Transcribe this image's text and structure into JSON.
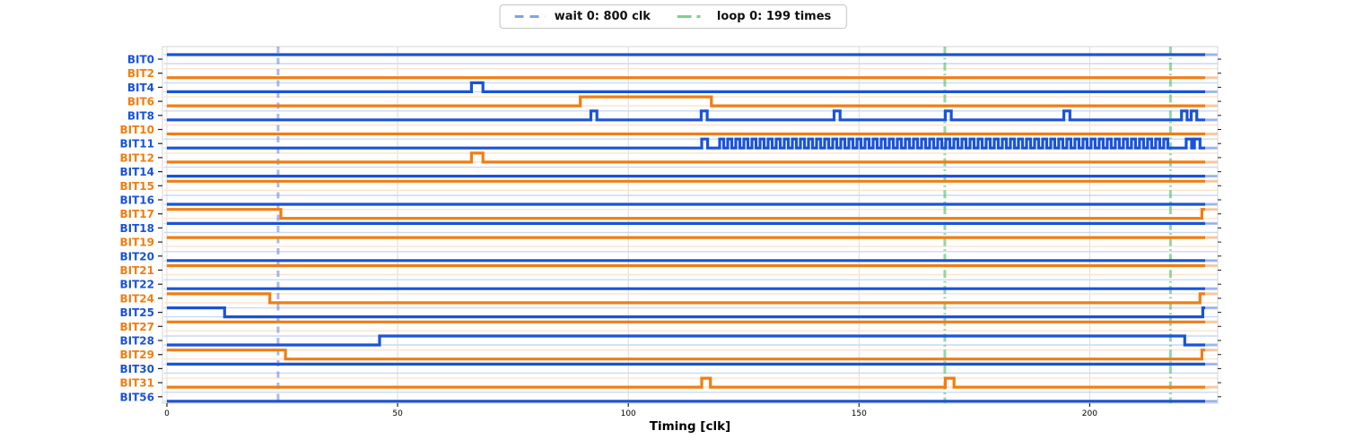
{
  "legend": {
    "wait": {
      "label": "wait 0: 800 clk",
      "color": "#83a1ea",
      "style": "dashed"
    },
    "loop": {
      "label": "loop 0: 199 times",
      "color": "#7fcf90",
      "style": "dashdot"
    }
  },
  "chart_data": {
    "type": "digital-timing",
    "xlabel": "Timing [clk]",
    "x_ticks": [
      0,
      50,
      100,
      150,
      200
    ],
    "xlim": [
      -1,
      227.8
    ],
    "t_end": 225,
    "grid": true,
    "legend_position": "top-center",
    "colors": {
      "blue": "#1a53d6",
      "orange": "#f07e12",
      "blue_faint": "#ccd9f4",
      "orange_faint": "#fbe4cd",
      "wait_line": "rgba(96,128,222,0.55)",
      "loop_line": "rgba(80,190,110,0.62)",
      "gridline": "#dcdcdc",
      "spine": "#d4d4d4",
      "tick": "#222222"
    },
    "events": [
      {
        "name": "wait 0",
        "label": "wait 0: 800 clk",
        "style": "dashed",
        "times": [
          24.1
        ]
      },
      {
        "name": "loop 0",
        "label": "loop 0: 199 times",
        "style": "dashdot",
        "times": [
          168.6,
          217.5
        ]
      }
    ],
    "signals": [
      {
        "name": "BIT0",
        "color": "blue",
        "level0": 1,
        "edges": []
      },
      {
        "name": "BIT2",
        "color": "orange",
        "level0": 0,
        "edges": []
      },
      {
        "name": "BIT4",
        "color": "blue",
        "level0": 0,
        "edges": [
          66,
          68.5
        ]
      },
      {
        "name": "BIT6",
        "color": "orange",
        "level0": 0,
        "edges": [
          89.6,
          118
        ]
      },
      {
        "name": "BIT8",
        "color": "blue",
        "level0": 0,
        "edges": [
          91.9,
          93.2,
          115.8,
          117.1,
          144.6,
          145.9,
          168.7,
          170.0,
          194.4,
          195.7,
          219.9,
          221.1,
          222.0,
          223.2
        ]
      },
      {
        "name": "BIT10",
        "color": "orange",
        "level0": 0,
        "edges": []
      },
      {
        "name": "BIT11",
        "color": "blue",
        "level0": 0,
        "edges": [
          115.9,
          117.2,
          220.9,
          222.1,
          222.7,
          223.9
        ],
        "bursts": [
          {
            "start": 119.8,
            "end": 217.6,
            "half_period": 0.875
          }
        ]
      },
      {
        "name": "BIT12",
        "color": "orange",
        "level0": 0,
        "edges": [
          66,
          68.5
        ]
      },
      {
        "name": "BIT14",
        "color": "blue",
        "level0": 0,
        "edges": []
      },
      {
        "name": "BIT15",
        "color": "orange",
        "level0": 1,
        "edges": []
      },
      {
        "name": "BIT16",
        "color": "blue",
        "level0": 0,
        "edges": []
      },
      {
        "name": "BIT17",
        "color": "orange",
        "level0": 1,
        "edges": [
          24.7,
          224.3
        ]
      },
      {
        "name": "BIT18",
        "color": "blue",
        "level0": 1,
        "edges": []
      },
      {
        "name": "BIT19",
        "color": "orange",
        "level0": 1,
        "edges": []
      },
      {
        "name": "BIT20",
        "color": "blue",
        "level0": 0,
        "edges": []
      },
      {
        "name": "BIT21",
        "color": "orange",
        "level0": 1,
        "edges": []
      },
      {
        "name": "BIT22",
        "color": "blue",
        "level0": 0,
        "edges": []
      },
      {
        "name": "BIT24",
        "color": "orange",
        "level0": 1,
        "edges": [
          22.3,
          223.9
        ]
      },
      {
        "name": "BIT25",
        "color": "blue",
        "level0": 1,
        "edges": [
          12.5,
          224.5
        ]
      },
      {
        "name": "BIT27",
        "color": "orange",
        "level0": 1,
        "edges": []
      },
      {
        "name": "BIT28",
        "color": "blue",
        "level0": 0,
        "edges": [
          46.1,
          220.6
        ]
      },
      {
        "name": "BIT29",
        "color": "orange",
        "level0": 1,
        "edges": [
          25.7,
          224.3
        ]
      },
      {
        "name": "BIT30",
        "color": "blue",
        "level0": 1,
        "edges": []
      },
      {
        "name": "BIT31",
        "color": "orange",
        "level0": 0,
        "edges": [
          115.9,
          117.8,
          168.7,
          170.6
        ]
      },
      {
        "name": "BIT56",
        "color": "blue",
        "level0": 0,
        "edges": []
      }
    ]
  }
}
